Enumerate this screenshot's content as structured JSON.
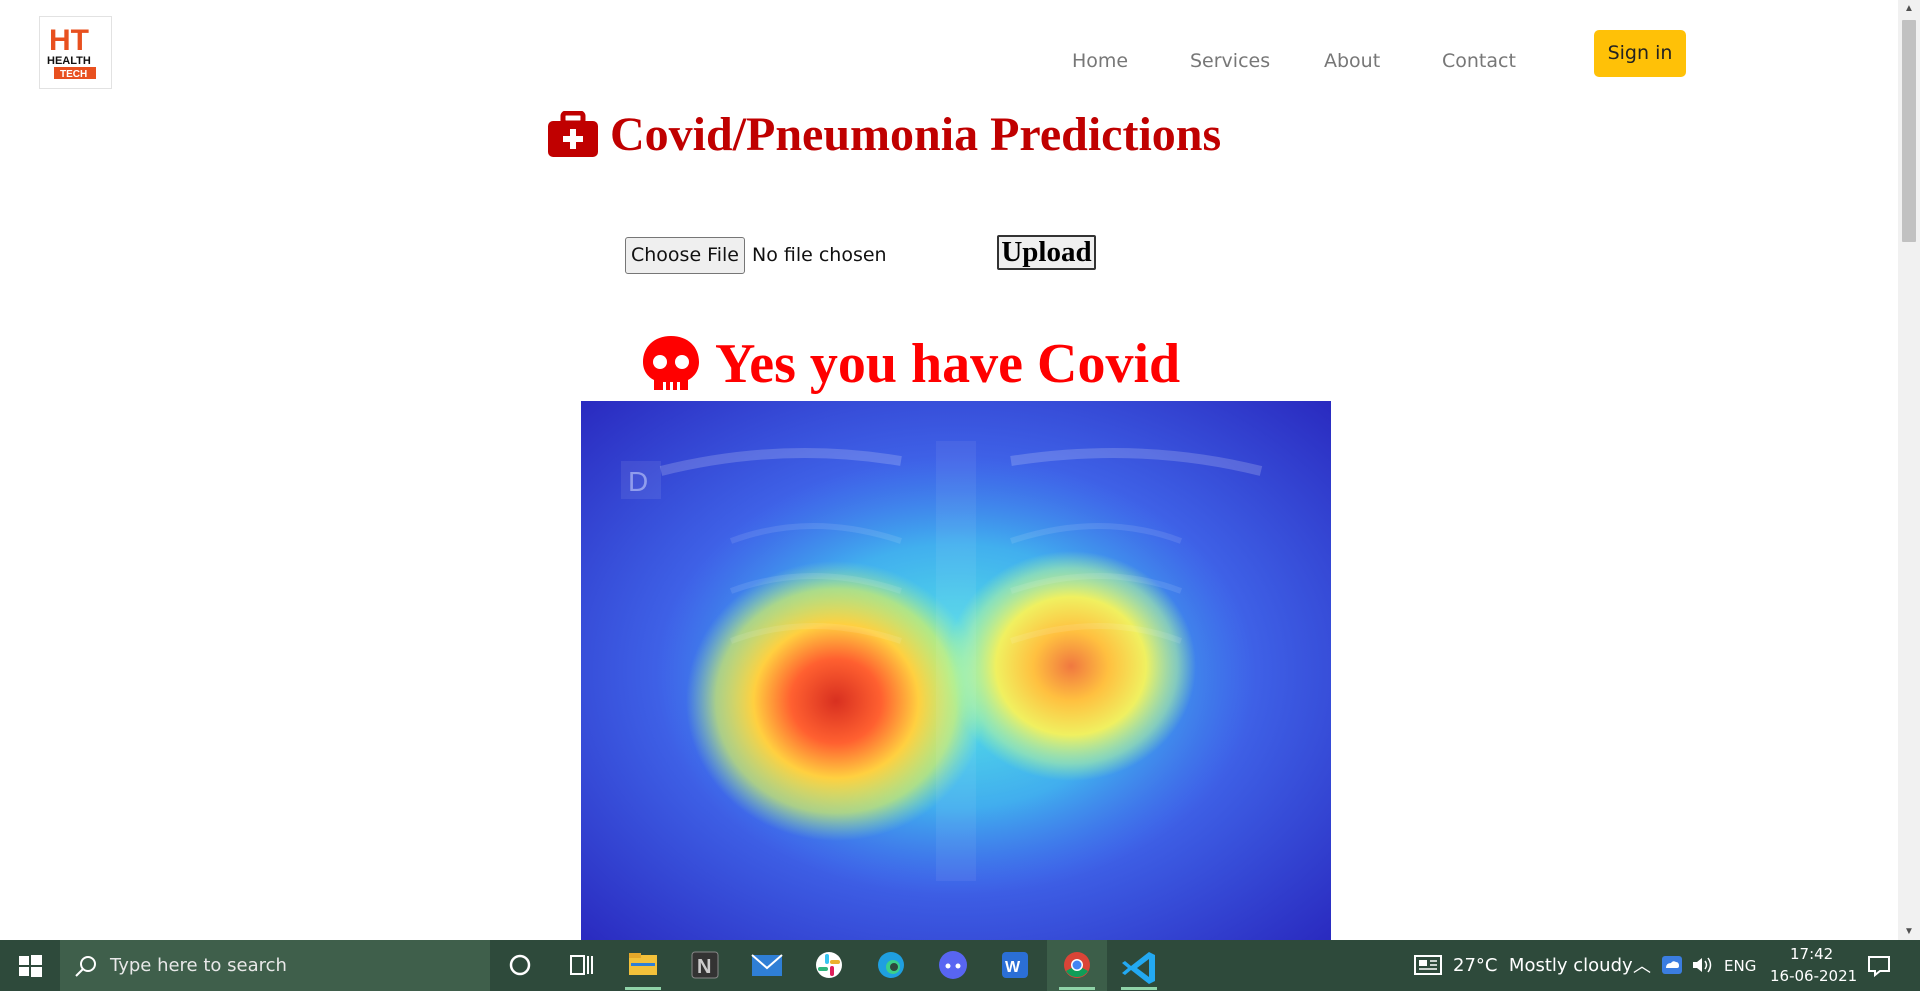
{
  "header": {
    "logo_text_top": "HT",
    "logo_text_mid": "HEALTH",
    "logo_text_bottom": "TECH",
    "nav": [
      "Home",
      "Services",
      "About",
      "Contact"
    ],
    "signin_label": "Sign in"
  },
  "main": {
    "title": "Covid/Pneumonia Predictions",
    "file_button_label": "Choose File",
    "file_status": "No file chosen",
    "upload_label": "Upload",
    "result_text": "Yes you have Covid",
    "image_watermark": "D"
  },
  "taskbar": {
    "search_placeholder": "Type here to search",
    "apps": [
      "cortana",
      "task-view",
      "file-explorer",
      "notion",
      "mail",
      "slack",
      "edge",
      "discord",
      "wps",
      "chrome",
      "vscode"
    ],
    "weather": "27°C  Mostly cloudy",
    "language": "ENG",
    "time": "17:42",
    "date": "16-06-2021"
  },
  "colors": {
    "title": "#c00000",
    "result": "#ff0000",
    "signin": "#ffc107",
    "taskbar": "#2e4a3b"
  }
}
